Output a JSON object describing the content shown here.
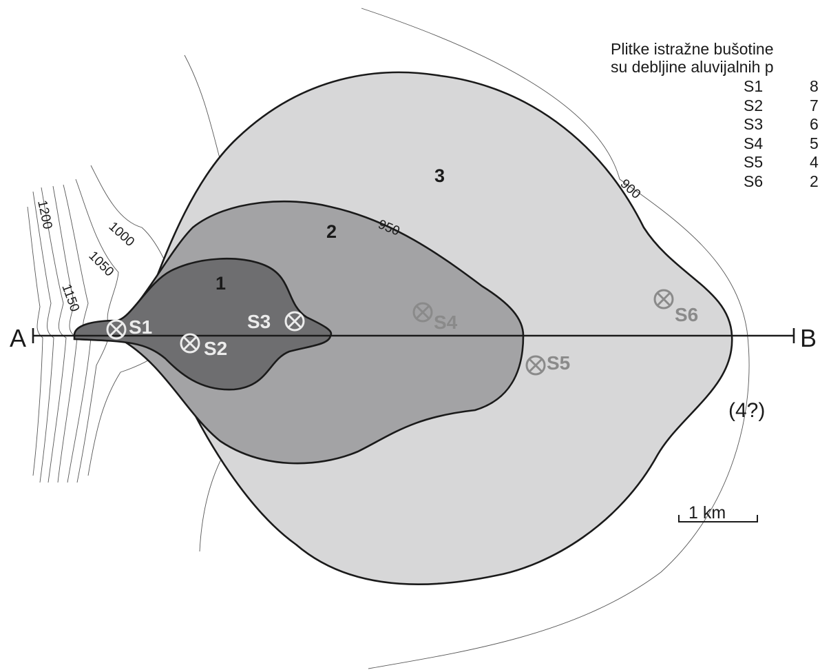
{
  "title_lines": [
    "Plitke istražne bušotine",
    "su debljine aluvijalnih p"
  ],
  "wells_table": [
    {
      "id": "S1",
      "value": "8"
    },
    {
      "id": "S2",
      "value": "7"
    },
    {
      "id": "S3",
      "value": "6"
    },
    {
      "id": "S4",
      "value": "5"
    },
    {
      "id": "S5",
      "value": "4"
    },
    {
      "id": "S6",
      "value": "2"
    }
  ],
  "contours": {
    "c900": "900",
    "c950": "950",
    "c1000": "1000",
    "c1050": "1050",
    "c1150": "1150",
    "c1200": "1200"
  },
  "zones": {
    "z1": "1",
    "z2": "2",
    "z3": "3",
    "z4": "(4?)"
  },
  "wells": {
    "s1": "S1",
    "s2": "S2",
    "s3": "S3",
    "s4": "S4",
    "s5": "S5",
    "s6": "S6"
  },
  "profile": {
    "start": "A",
    "end": "B"
  },
  "scale_label": "1 km",
  "colors": {
    "zone1": "#6e6e70",
    "zone2": "#a3a3a5",
    "zone3": "#d7d7d8",
    "well_light": "#ececec",
    "well_dark": "#8a8a8a"
  }
}
